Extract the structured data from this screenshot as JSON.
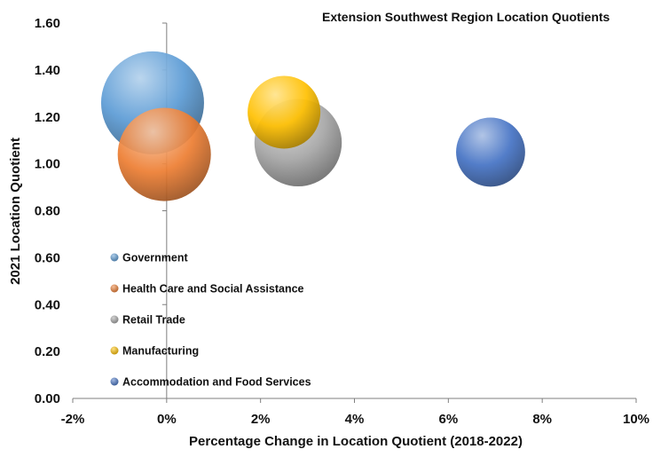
{
  "chart_data": {
    "type": "bubble",
    "title": "Extension Southwest Region Location Quotients",
    "xlabel": "Percentage Change in Location Quotient (2018-2022)",
    "ylabel": "2021 Location Quotient",
    "xlim": [
      -2,
      10
    ],
    "ylim": [
      0,
      1.6
    ],
    "x_ticks": [
      "-2%",
      "0%",
      "2%",
      "4%",
      "6%",
      "8%",
      "10%"
    ],
    "y_ticks": [
      "0.00",
      "0.20",
      "0.40",
      "0.60",
      "0.80",
      "1.00",
      "1.20",
      "1.40",
      "1.60"
    ],
    "grid": false,
    "legend_position": "left",
    "series": [
      {
        "name": "Government",
        "x": -0.3,
        "y": 1.26,
        "size": 1.0,
        "color": "#5B9BD5"
      },
      {
        "name": "Health Care and Social Assistance",
        "x": -0.05,
        "y": 1.04,
        "size": 0.82,
        "color": "#ED7D31"
      },
      {
        "name": "Retail Trade",
        "x": 2.8,
        "y": 1.09,
        "size": 0.72,
        "color": "#A5A5A5"
      },
      {
        "name": "Manufacturing",
        "x": 2.5,
        "y": 1.22,
        "size": 0.5,
        "color": "#FFC000"
      },
      {
        "name": "Accommodation and Food Services",
        "x": 6.9,
        "y": 1.05,
        "size": 0.45,
        "color": "#4472C4"
      }
    ]
  }
}
